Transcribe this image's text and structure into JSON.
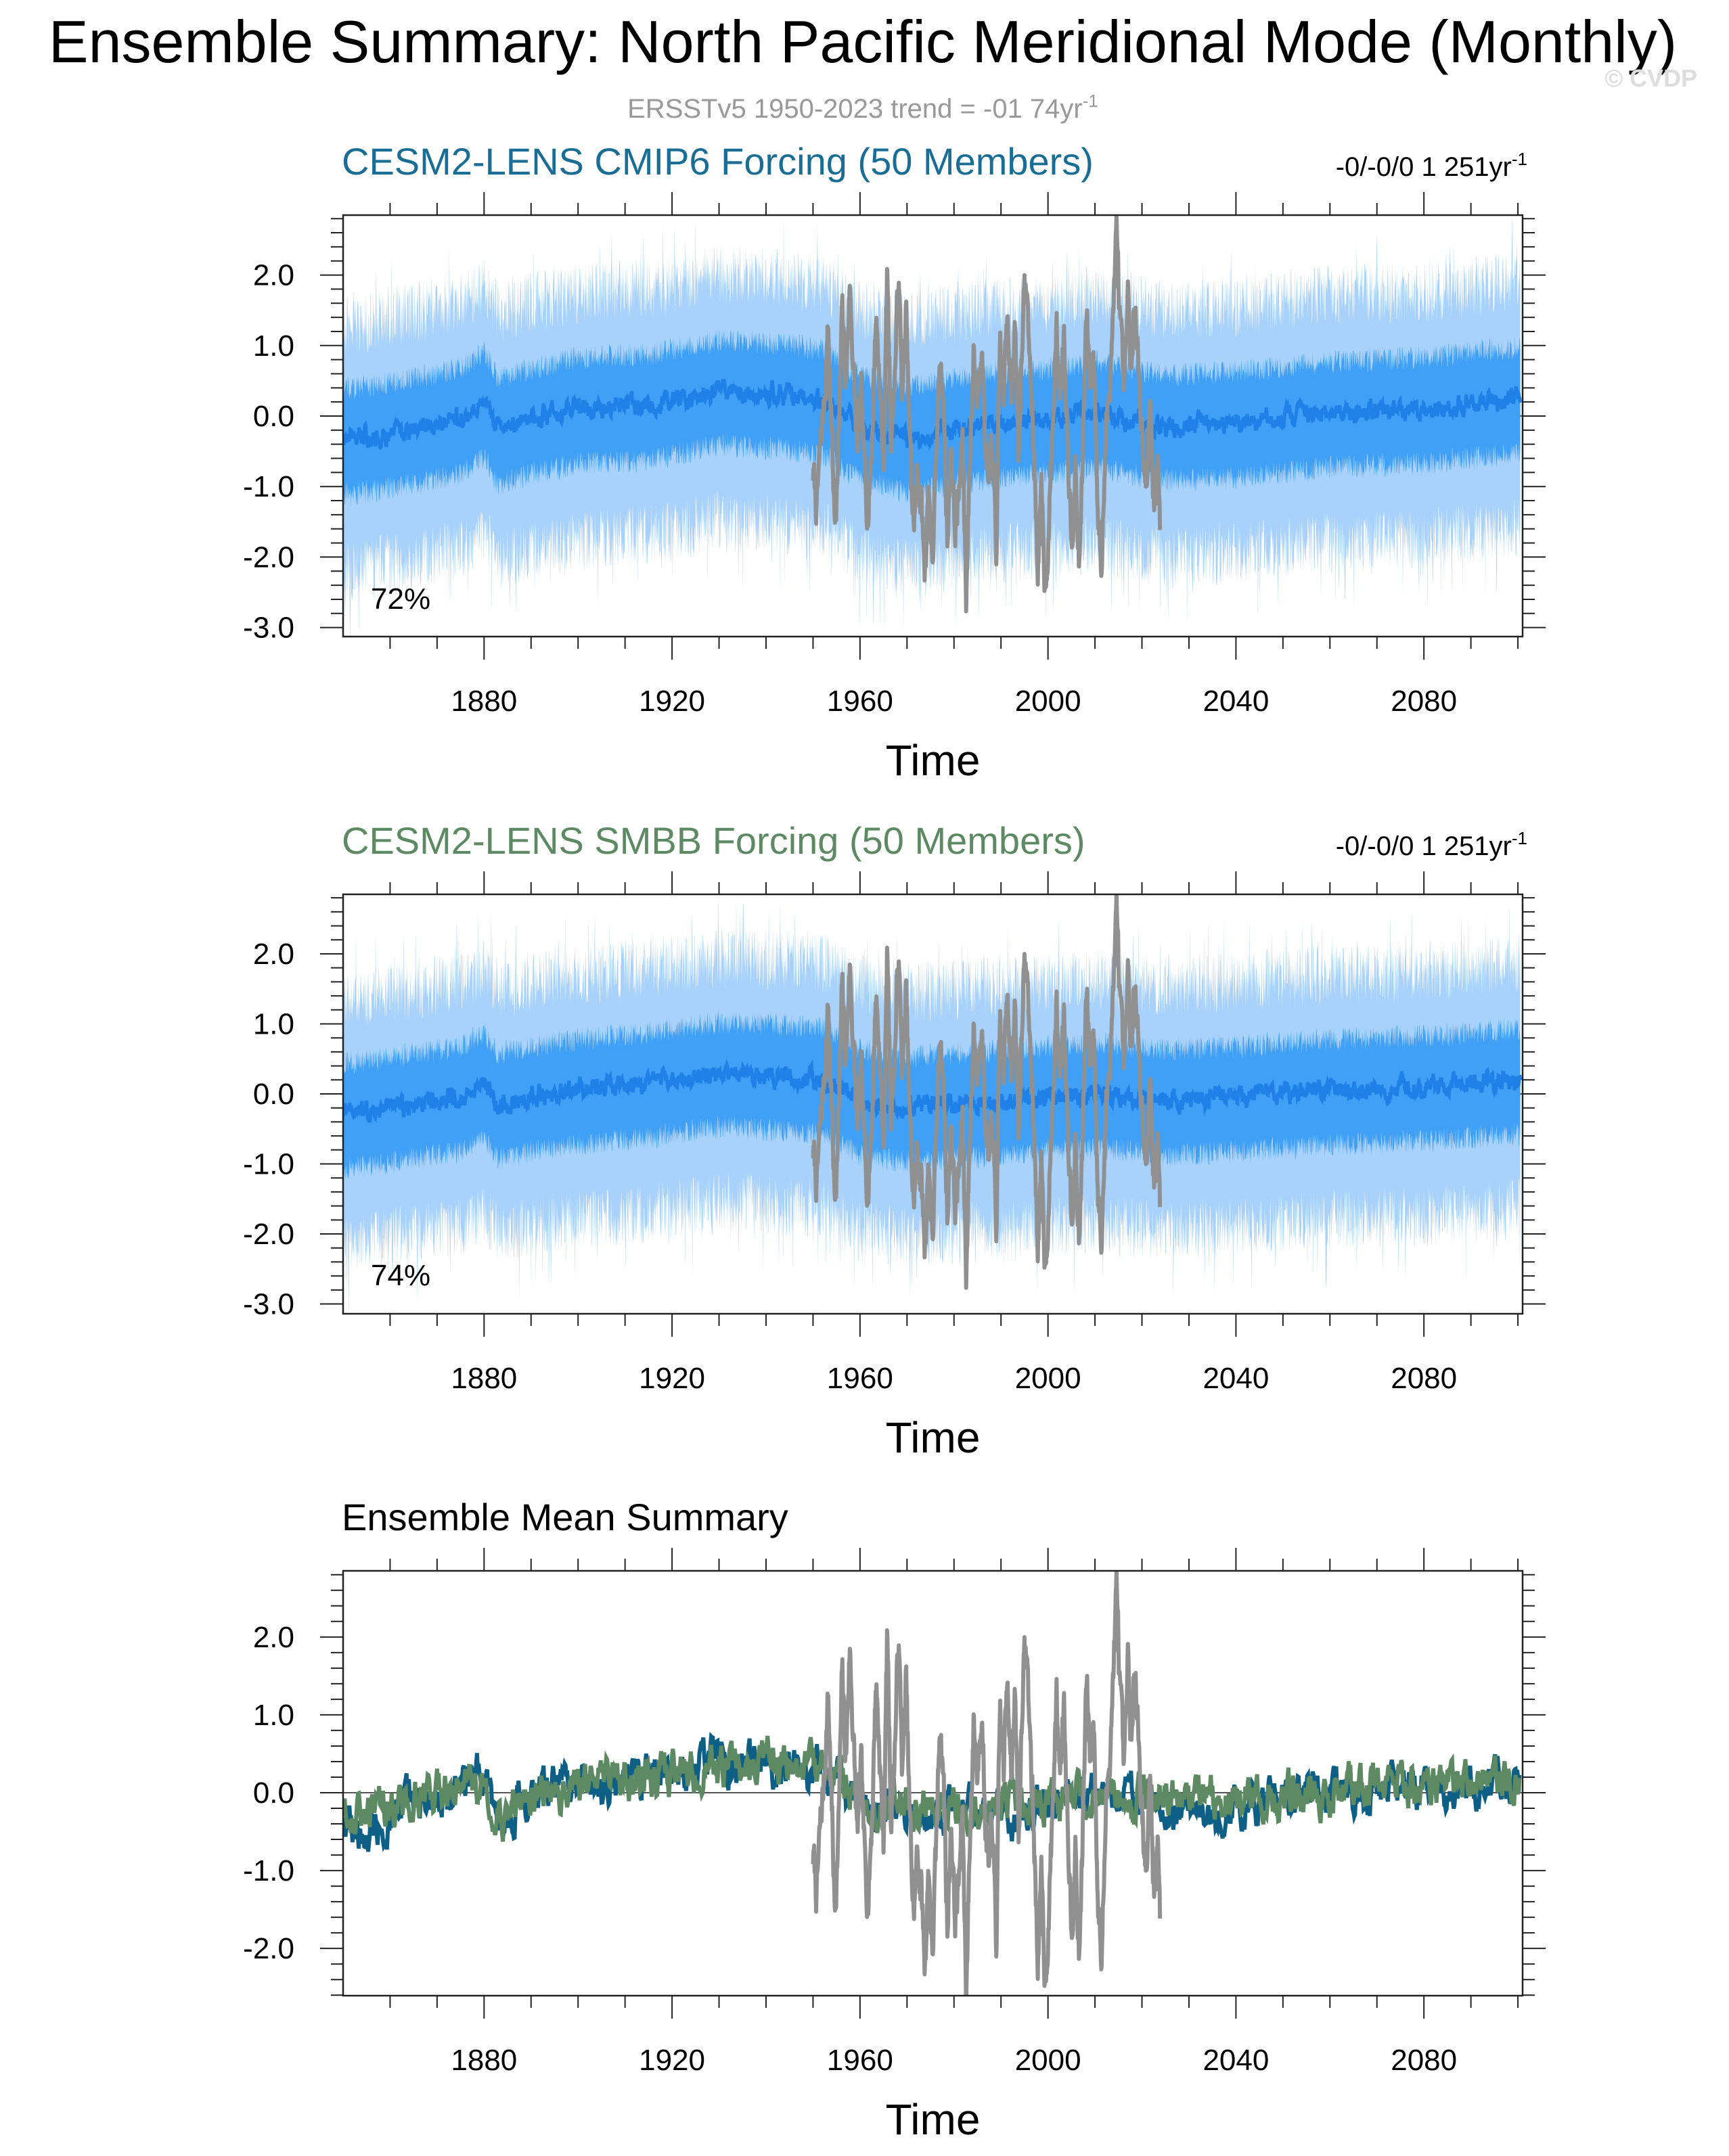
{
  "title": "Ensemble Summary: North Pacific Meridional Mode (Monthly)",
  "subtitle": {
    "text": "ERSSTv5 1950-2023 trend = -01 74yr",
    "sup": "-1"
  },
  "watermark": "© CVDP",
  "colors": {
    "cmip6_title": "#1a6e96",
    "smbb_title": "#5e8a63",
    "band_outer": "#a8d2fb",
    "band_inner": "#3fa0f6",
    "ens_mean": "#1f80e8",
    "obs": "#909090",
    "mean_cmip6": "#0d5f86",
    "mean_smbb": "#5e8a63",
    "subtitle": "#999999",
    "watermark": "#dddddd"
  },
  "chart_data": [
    {
      "type": "line",
      "panel_title": "CESM2-LENS CMIP6 Forcing (50 Members)",
      "trend_label": {
        "text": "-0/-0/0 1 251yr",
        "sup": "-1"
      },
      "percent_label": "72%",
      "xlabel": "Time",
      "xlim": [
        1850,
        2101
      ],
      "ylim": [
        -3.05,
        2.85
      ],
      "xticks": [
        1880,
        1920,
        1960,
        2000,
        2040,
        2080
      ],
      "xtick_labels": [
        "1880",
        "1920",
        "1960",
        "2000",
        "2040",
        "2080"
      ],
      "yticks": [
        2.0,
        1.0,
        0.0,
        -1.0,
        -2.0,
        -3.0
      ],
      "ytick_labels": [
        "2.0",
        "1.0",
        "0.0",
        "-1.0",
        "-2.0",
        "-3.0"
      ],
      "series": [
        {
          "name": "ensemble spread (min-max)",
          "style": "band_outer"
        },
        {
          "name": "ensemble spread (inner range)",
          "style": "band_inner"
        },
        {
          "name": "ensemble mean",
          "style": "ens_mean",
          "anchors": [
            [
              1850,
              -0.35
            ],
            [
              1860,
              -0.25
            ],
            [
              1875,
              -0.05
            ],
            [
              1880,
              0.2
            ],
            [
              1883,
              -0.2
            ],
            [
              1890,
              -0.05
            ],
            [
              1900,
              0.1
            ],
            [
              1915,
              0.15
            ],
            [
              1930,
              0.35
            ],
            [
              1945,
              0.3
            ],
            [
              1953,
              0.2
            ],
            [
              1960,
              -0.15
            ],
            [
              1970,
              -0.3
            ],
            [
              1980,
              -0.2
            ],
            [
              1990,
              -0.1
            ],
            [
              2000,
              -0.05
            ],
            [
              2010,
              0.05
            ],
            [
              2025,
              -0.15
            ],
            [
              2040,
              -0.1
            ],
            [
              2060,
              0.05
            ],
            [
              2080,
              0.1
            ],
            [
              2100,
              0.25
            ]
          ]
        },
        {
          "name": "ERSSTv5 observations 1950-2023",
          "style": "obs"
        }
      ]
    },
    {
      "type": "line",
      "panel_title": "CESM2-LENS SMBB Forcing (50 Members)",
      "trend_label": {
        "text": "-0/-0/0 1 251yr",
        "sup": "-1"
      },
      "percent_label": "74%",
      "xlabel": "Time",
      "xlim": [
        1850,
        2101
      ],
      "ylim": [
        -3.05,
        2.85
      ],
      "xticks": [
        1880,
        1920,
        1960,
        2000,
        2040,
        2080
      ],
      "xtick_labels": [
        "1880",
        "1920",
        "1960",
        "2000",
        "2040",
        "2080"
      ],
      "yticks": [
        2.0,
        1.0,
        0.0,
        -1.0,
        -2.0,
        -3.0
      ],
      "ytick_labels": [
        "2.0",
        "1.0",
        "0.0",
        "-1.0",
        "-2.0",
        "-3.0"
      ],
      "series": [
        {
          "name": "ensemble spread (min-max)",
          "style": "band_outer"
        },
        {
          "name": "ensemble spread (inner range)",
          "style": "band_inner"
        },
        {
          "name": "ensemble mean",
          "style": "ens_mean",
          "anchors": [
            [
              1850,
              -0.3
            ],
            [
              1860,
              -0.2
            ],
            [
              1875,
              -0.05
            ],
            [
              1880,
              0.15
            ],
            [
              1883,
              -0.15
            ],
            [
              1890,
              -0.05
            ],
            [
              1900,
              0.05
            ],
            [
              1915,
              0.15
            ],
            [
              1930,
              0.3
            ],
            [
              1945,
              0.25
            ],
            [
              1953,
              0.2
            ],
            [
              1960,
              -0.1
            ],
            [
              1970,
              -0.2
            ],
            [
              1980,
              -0.15
            ],
            [
              1990,
              -0.1
            ],
            [
              2000,
              -0.05
            ],
            [
              2010,
              0.0
            ],
            [
              2025,
              -0.1
            ],
            [
              2040,
              -0.05
            ],
            [
              2060,
              0.05
            ],
            [
              2080,
              0.1
            ],
            [
              2100,
              0.2
            ]
          ]
        },
        {
          "name": "ERSSTv5 observations 1950-2023",
          "style": "obs"
        }
      ]
    },
    {
      "type": "line",
      "panel_title": "Ensemble Mean Summary",
      "xlabel": "Time",
      "xlim": [
        1850,
        2101
      ],
      "ylim": [
        -2.6,
        2.85
      ],
      "xticks": [
        1880,
        1920,
        1960,
        2000,
        2040,
        2080
      ],
      "xtick_labels": [
        "1880",
        "1920",
        "1960",
        "2000",
        "2040",
        "2080"
      ],
      "yticks": [
        2.0,
        1.0,
        0.0,
        -1.0,
        -2.0
      ],
      "ytick_labels": [
        "2.0",
        "1.0",
        "0.0",
        "-1.0",
        "-2.0"
      ],
      "series": [
        {
          "name": "CESM2-LENS CMIP6 ensemble mean",
          "style": "mean_cmip6",
          "anchors": [
            [
              1850,
              -0.35
            ],
            [
              1855,
              -0.55
            ],
            [
              1860,
              -0.3
            ],
            [
              1870,
              -0.1
            ],
            [
              1880,
              0.25
            ],
            [
              1884,
              -0.6
            ],
            [
              1887,
              -0.1
            ],
            [
              1895,
              0.05
            ],
            [
              1905,
              0.1
            ],
            [
              1915,
              0.25
            ],
            [
              1925,
              0.35
            ],
            [
              1935,
              0.4
            ],
            [
              1945,
              0.35
            ],
            [
              1953,
              0.3
            ],
            [
              1960,
              -0.2
            ],
            [
              1970,
              -0.3
            ],
            [
              1980,
              -0.25
            ],
            [
              1990,
              -0.25
            ],
            [
              2000,
              -0.15
            ],
            [
              2010,
              0.0
            ],
            [
              2020,
              -0.1
            ],
            [
              2030,
              -0.2
            ],
            [
              2040,
              -0.15
            ],
            [
              2060,
              0.0
            ],
            [
              2080,
              0.05
            ],
            [
              2100,
              0.15
            ]
          ]
        },
        {
          "name": "CESM2-LENS SMBB ensemble mean",
          "style": "mean_smbb",
          "anchors": [
            [
              1850,
              -0.25
            ],
            [
              1855,
              -0.35
            ],
            [
              1860,
              -0.2
            ],
            [
              1870,
              -0.05
            ],
            [
              1880,
              0.2
            ],
            [
              1884,
              -0.3
            ],
            [
              1887,
              -0.05
            ],
            [
              1895,
              0.05
            ],
            [
              1905,
              0.1
            ],
            [
              1915,
              0.2
            ],
            [
              1925,
              0.3
            ],
            [
              1935,
              0.35
            ],
            [
              1945,
              0.3
            ],
            [
              1953,
              0.25
            ],
            [
              1960,
              -0.1
            ],
            [
              1970,
              -0.2
            ],
            [
              1980,
              -0.2
            ],
            [
              1990,
              -0.15
            ],
            [
              2000,
              -0.1
            ],
            [
              2010,
              0.0
            ],
            [
              2020,
              -0.05
            ],
            [
              2030,
              -0.1
            ],
            [
              2040,
              -0.1
            ],
            [
              2060,
              0.05
            ],
            [
              2080,
              0.1
            ],
            [
              2100,
              0.2
            ]
          ]
        },
        {
          "name": "ERSSTv5 observations 1950-2023",
          "style": "obs"
        }
      ]
    }
  ],
  "observations": {
    "name": "ERSSTv5",
    "start": 1950,
    "end": 2023.9,
    "anchors": [
      [
        1950.0,
        -0.8
      ],
      [
        1950.8,
        -1.3
      ],
      [
        1951.6,
        -0.4
      ],
      [
        1952.4,
        0.2
      ],
      [
        1953.2,
        1.3
      ],
      [
        1953.8,
        0.2
      ],
      [
        1954.6,
        -1.5
      ],
      [
        1955.4,
        -0.5
      ],
      [
        1956.2,
        1.5
      ],
      [
        1957.0,
        0.4
      ],
      [
        1957.8,
        1.9
      ],
      [
        1958.6,
        0.7
      ],
      [
        1959.4,
        -0.6
      ],
      [
        1960.2,
        0.3
      ],
      [
        1961.0,
        -0.9
      ],
      [
        1961.8,
        -1.3
      ],
      [
        1962.6,
        -0.2
      ],
      [
        1963.4,
        1.5
      ],
      [
        1964.2,
        0.5
      ],
      [
        1965.0,
        -0.7
      ],
      [
        1965.8,
        2.1
      ],
      [
        1966.6,
        -0.3
      ],
      [
        1967.4,
        0.6
      ],
      [
        1968.2,
        2.0
      ],
      [
        1969.0,
        0.3
      ],
      [
        1969.8,
        1.4
      ],
      [
        1970.6,
        -0.4
      ],
      [
        1971.4,
        -1.6
      ],
      [
        1972.2,
        -0.8
      ],
      [
        1973.0,
        -1.2
      ],
      [
        1973.8,
        -2.2
      ],
      [
        1974.6,
        -0.9
      ],
      [
        1975.4,
        -2.1
      ],
      [
        1976.2,
        -0.8
      ],
      [
        1977.0,
        1.0
      ],
      [
        1977.8,
        0.2
      ],
      [
        1978.6,
        -1.8
      ],
      [
        1979.4,
        -0.3
      ],
      [
        1980.2,
        -1.6
      ],
      [
        1981.0,
        -1.2
      ],
      [
        1981.8,
        -0.3
      ],
      [
        1982.6,
        -2.5
      ],
      [
        1983.4,
        -0.6
      ],
      [
        1984.2,
        1.0
      ],
      [
        1985.0,
        0.2
      ],
      [
        1985.8,
        1.3
      ],
      [
        1986.6,
        -0.2
      ],
      [
        1987.4,
        -1.1
      ],
      [
        1988.2,
        -0.4
      ],
      [
        1989.0,
        -2.0
      ],
      [
        1989.8,
        1.0
      ],
      [
        1990.6,
        0.3
      ],
      [
        1991.4,
        1.6
      ],
      [
        1992.2,
        0.4
      ],
      [
        1993.0,
        1.1
      ],
      [
        1993.8,
        -0.6
      ],
      [
        1994.6,
        1.4
      ],
      [
        1995.4,
        1.9
      ],
      [
        1996.2,
        0.7
      ],
      [
        1997.0,
        -0.5
      ],
      [
        1997.8,
        -2.1
      ],
      [
        1998.6,
        -1.2
      ],
      [
        1999.4,
        -2.4
      ],
      [
        2000.2,
        -1.5
      ],
      [
        2001.0,
        -0.2
      ],
      [
        2001.8,
        1.2
      ],
      [
        2002.6,
        0.3
      ],
      [
        2003.4,
        1.3
      ],
      [
        2004.2,
        -0.2
      ],
      [
        2005.0,
        -1.7
      ],
      [
        2005.8,
        -0.7
      ],
      [
        2006.6,
        -2.2
      ],
      [
        2007.4,
        -0.5
      ],
      [
        2008.2,
        1.4
      ],
      [
        2009.0,
        0.4
      ],
      [
        2009.8,
        0.9
      ],
      [
        2010.6,
        -1.2
      ],
      [
        2011.4,
        -2.2
      ],
      [
        2012.2,
        -0.5
      ],
      [
        2013.0,
        0.4
      ],
      [
        2013.8,
        1.4
      ],
      [
        2014.6,
        2.6
      ],
      [
        2015.4,
        1.2
      ],
      [
        2016.2,
        0.1
      ],
      [
        2017.0,
        1.6
      ],
      [
        2017.8,
        0.5
      ],
      [
        2018.6,
        1.8
      ],
      [
        2019.4,
        0.6
      ],
      [
        2020.2,
        -0.4
      ],
      [
        2021.0,
        -1.0
      ],
      [
        2021.8,
        0.2
      ],
      [
        2022.6,
        -1.4
      ],
      [
        2023.4,
        -0.4
      ],
      [
        2023.9,
        -1.6
      ]
    ]
  }
}
